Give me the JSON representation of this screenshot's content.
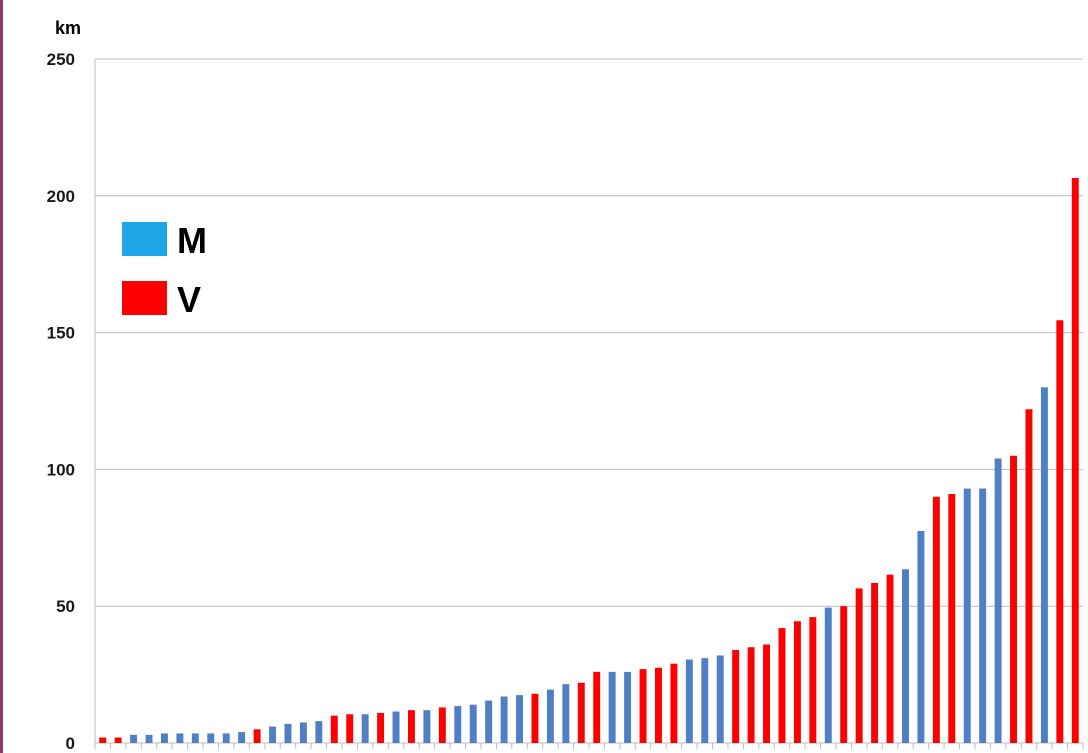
{
  "chart_data": {
    "type": "bar",
    "unit_label": "km",
    "ylim": [
      0,
      250
    ],
    "yticks": [
      0,
      50,
      100,
      150,
      200,
      250
    ],
    "grid": true,
    "legend_position": "left",
    "legend": [
      {
        "key": "M",
        "label": "M",
        "color": "#1ea7e8"
      },
      {
        "key": "V",
        "label": "V",
        "color": "#ff0000"
      }
    ],
    "series_colors": {
      "M": "#4f7fc4",
      "V": "#ff0000"
    },
    "bars": [
      {
        "g": "V",
        "v": 2
      },
      {
        "g": "V",
        "v": 2
      },
      {
        "g": "M",
        "v": 3
      },
      {
        "g": "M",
        "v": 3
      },
      {
        "g": "M",
        "v": 3.5
      },
      {
        "g": "M",
        "v": 3.5
      },
      {
        "g": "M",
        "v": 3.5
      },
      {
        "g": "M",
        "v": 3.5
      },
      {
        "g": "M",
        "v": 3.5
      },
      {
        "g": "M",
        "v": 4
      },
      {
        "g": "V",
        "v": 5
      },
      {
        "g": "M",
        "v": 6
      },
      {
        "g": "M",
        "v": 7
      },
      {
        "g": "M",
        "v": 7.5
      },
      {
        "g": "M",
        "v": 8
      },
      {
        "g": "V",
        "v": 10
      },
      {
        "g": "V",
        "v": 10.5
      },
      {
        "g": "M",
        "v": 10.5
      },
      {
        "g": "V",
        "v": 11
      },
      {
        "g": "M",
        "v": 11.5
      },
      {
        "g": "V",
        "v": 12
      },
      {
        "g": "M",
        "v": 12
      },
      {
        "g": "V",
        "v": 13
      },
      {
        "g": "M",
        "v": 13.5
      },
      {
        "g": "M",
        "v": 14
      },
      {
        "g": "M",
        "v": 15.5
      },
      {
        "g": "M",
        "v": 17
      },
      {
        "g": "M",
        "v": 17.5
      },
      {
        "g": "V",
        "v": 18
      },
      {
        "g": "M",
        "v": 19.5
      },
      {
        "g": "M",
        "v": 21.5
      },
      {
        "g": "V",
        "v": 22
      },
      {
        "g": "V",
        "v": 26
      },
      {
        "g": "M",
        "v": 26
      },
      {
        "g": "M",
        "v": 26
      },
      {
        "g": "V",
        "v": 27
      },
      {
        "g": "V",
        "v": 27.5
      },
      {
        "g": "V",
        "v": 29
      },
      {
        "g": "M",
        "v": 30.5
      },
      {
        "g": "M",
        "v": 31
      },
      {
        "g": "M",
        "v": 32
      },
      {
        "g": "V",
        "v": 34
      },
      {
        "g": "V",
        "v": 35
      },
      {
        "g": "V",
        "v": 36
      },
      {
        "g": "V",
        "v": 42
      },
      {
        "g": "V",
        "v": 44.5
      },
      {
        "g": "V",
        "v": 46
      },
      {
        "g": "M",
        "v": 49.5
      },
      {
        "g": "V",
        "v": 50
      },
      {
        "g": "V",
        "v": 56.5
      },
      {
        "g": "V",
        "v": 58.5
      },
      {
        "g": "V",
        "v": 61.5
      },
      {
        "g": "M",
        "v": 63.5
      },
      {
        "g": "M",
        "v": 77.5
      },
      {
        "g": "V",
        "v": 90
      },
      {
        "g": "V",
        "v": 91
      },
      {
        "g": "M",
        "v": 93
      },
      {
        "g": "M",
        "v": 93
      },
      {
        "g": "M",
        "v": 104
      },
      {
        "g": "V",
        "v": 105
      },
      {
        "g": "V",
        "v": 122
      },
      {
        "g": "M",
        "v": 130
      },
      {
        "g": "V",
        "v": 154.5
      },
      {
        "g": "V",
        "v": 206.5
      }
    ]
  }
}
